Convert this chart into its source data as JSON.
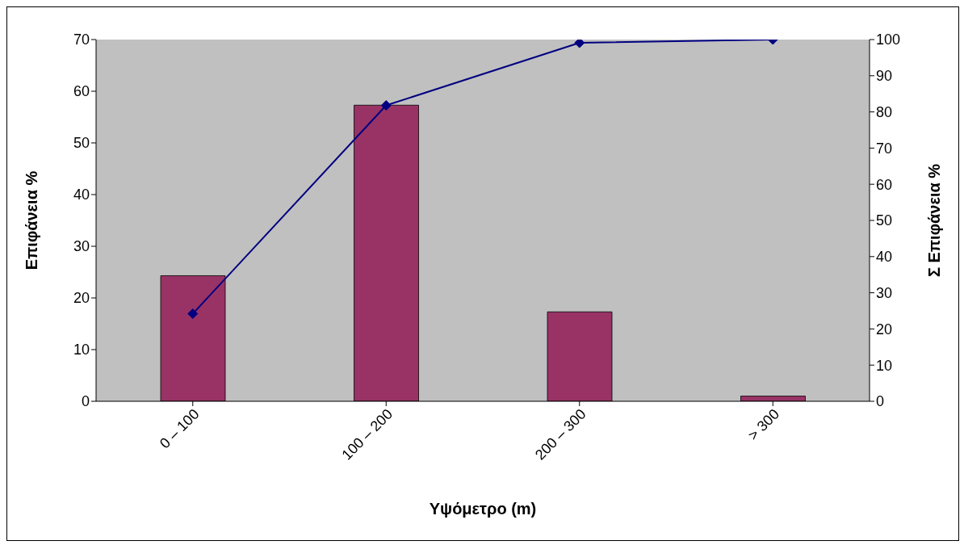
{
  "chart_data": {
    "type": "bar",
    "xlabel": "Υψόμετρο (m)",
    "ylabel": "Επιφάνεια %",
    "y2label": "Σ Επιφάνεια %",
    "categories": [
      "0 – 100",
      "100 – 200",
      "200 – 300",
      "> 300"
    ],
    "series": [
      {
        "color": "#993366",
        "values": [
          24.3,
          57.3,
          17.3,
          1.0
        ]
      },
      {
        "type": "line",
        "axis": "y2",
        "color": "#000080",
        "marker": "diamond",
        "values": [
          24.2,
          81.8,
          99.1,
          100
        ]
      }
    ],
    "ylim": [
      0,
      70
    ],
    "yticks": [
      0,
      10,
      20,
      30,
      40,
      50,
      60,
      70
    ],
    "y2lim": [
      0,
      100
    ],
    "y2ticks": [
      0,
      10,
      20,
      30,
      40,
      50,
      60,
      70,
      80,
      90,
      100
    ],
    "grid": false,
    "legend": false
  }
}
